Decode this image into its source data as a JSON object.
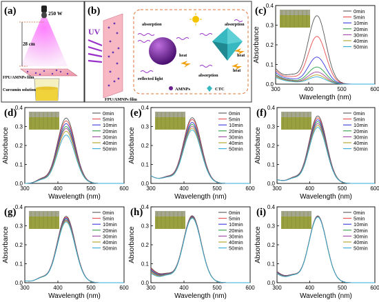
{
  "panel_a": {
    "label": "(a)",
    "lamp": "250 W",
    "distance": "28 cm",
    "film": "FPU/AMNPs film",
    "solution": "Curcumin solution"
  },
  "panel_b": {
    "label": "(b)",
    "uv": "UV",
    "film": "FPU/AMNPs film",
    "absorption": "absorption",
    "heat": "heat",
    "reflected": "reflected light",
    "amnps": "AMNPs",
    "ctc": "CTC"
  },
  "colors": {
    "series": [
      "#555555",
      "#e84a4a",
      "#3535dd",
      "#2aa044",
      "#a040a0",
      "#b0a020",
      "#30a8d8"
    ],
    "photo_bg": "#9aa040",
    "uv_beam": "#dd66dd",
    "film_pink": "#f2a8b8",
    "sphere": "#6a2090",
    "crystal": "#30a8b0",
    "dashed_frame": "#e07030"
  },
  "chart_data": [
    {
      "type": "line",
      "label": "(c)",
      "xlabel": "Wavelength (nm)",
      "ylabel": "Absorbance",
      "xlim": [
        300,
        600
      ],
      "ylim": [
        0,
        0.4
      ],
      "xticks": [
        300,
        400,
        500,
        600
      ],
      "yticks": [
        0.0,
        0.1,
        0.2,
        0.3,
        0.4
      ],
      "legend_position": "top-right",
      "series": [
        {
          "name": "0min",
          "peak": 0.345,
          "base": 0.08
        },
        {
          "name": "5min",
          "peak": 0.24,
          "base": 0.07
        },
        {
          "name": "10min",
          "peak": 0.135,
          "base": 0.06
        },
        {
          "name": "20min",
          "peak": 0.085,
          "base": 0.05
        },
        {
          "name": "30min",
          "peak": 0.06,
          "base": 0.045
        },
        {
          "name": "40min",
          "peak": 0.045,
          "base": 0.04
        },
        {
          "name": "50min",
          "peak": 0.035,
          "base": 0.035
        }
      ]
    },
    {
      "type": "line",
      "label": "(d)",
      "xlabel": "Wavelength (nm)",
      "ylabel": "Absorbance",
      "xlim": [
        300,
        600
      ],
      "ylim": [
        0,
        0.4
      ],
      "xticks": [
        300,
        400,
        500,
        600
      ],
      "yticks": [
        0.0,
        0.1,
        0.2,
        0.3,
        0.4
      ],
      "legend_position": "top-right",
      "series": [
        {
          "name": "0min",
          "peak": 0.345,
          "base": 0.0
        },
        {
          "name": "5min",
          "peak": 0.33,
          "base": 0.0
        },
        {
          "name": "10min",
          "peak": 0.315,
          "base": 0.0
        },
        {
          "name": "20min",
          "peak": 0.3,
          "base": 0.0
        },
        {
          "name": "30min",
          "peak": 0.29,
          "base": 0.0
        },
        {
          "name": "40min",
          "peak": 0.275,
          "base": 0.0
        },
        {
          "name": "50min",
          "peak": 0.255,
          "base": 0.0
        }
      ]
    },
    {
      "type": "line",
      "label": "(e)",
      "xlabel": "Wavelength (nm)",
      "ylabel": "Absorbance",
      "xlim": [
        300,
        600
      ],
      "ylim": [
        0,
        0.4
      ],
      "xticks": [
        300,
        400,
        500,
        600
      ],
      "yticks": [
        0.0,
        0.1,
        0.2,
        0.3,
        0.4
      ],
      "legend_position": "top-right",
      "series": [
        {
          "name": "0min",
          "peak": 0.345,
          "base": 0.04
        },
        {
          "name": "5min",
          "peak": 0.335,
          "base": 0.04
        },
        {
          "name": "10min",
          "peak": 0.32,
          "base": 0.04
        },
        {
          "name": "20min",
          "peak": 0.31,
          "base": 0.04
        },
        {
          "name": "30min",
          "peak": 0.3,
          "base": 0.04
        },
        {
          "name": "40min",
          "peak": 0.29,
          "base": 0.04
        },
        {
          "name": "50min",
          "peak": 0.28,
          "base": 0.04
        }
      ]
    },
    {
      "type": "line",
      "label": "(f)",
      "xlabel": "Wavelength (nm)",
      "ylabel": "Absorbance",
      "xlim": [
        300,
        600
      ],
      "ylim": [
        0,
        0.4
      ],
      "xticks": [
        300,
        400,
        500,
        600
      ],
      "yticks": [
        0.0,
        0.1,
        0.2,
        0.3,
        0.4
      ],
      "legend_position": "top-right",
      "series": [
        {
          "name": "0min",
          "peak": 0.355,
          "base": 0.02
        },
        {
          "name": "5min",
          "peak": 0.345,
          "base": 0.02
        },
        {
          "name": "10min",
          "peak": 0.335,
          "base": 0.02
        },
        {
          "name": "20min",
          "peak": 0.325,
          "base": 0.02
        },
        {
          "name": "30min",
          "peak": 0.315,
          "base": 0.02
        },
        {
          "name": "40min",
          "peak": 0.305,
          "base": 0.02
        },
        {
          "name": "50min",
          "peak": 0.295,
          "base": 0.02
        }
      ]
    },
    {
      "type": "line",
      "label": "(g)",
      "xlabel": "Wavelength (nm)",
      "ylabel": "Absorbance",
      "xlim": [
        300,
        600
      ],
      "ylim": [
        0,
        0.4
      ],
      "xticks": [
        300,
        400,
        500,
        600
      ],
      "yticks": [
        0.0,
        0.1,
        0.2,
        0.3,
        0.4
      ],
      "legend_position": "top-right",
      "series": [
        {
          "name": "0min",
          "peak": 0.35,
          "base": 0.01
        },
        {
          "name": "5min",
          "peak": 0.345,
          "base": 0.01
        },
        {
          "name": "10min",
          "peak": 0.34,
          "base": 0.01
        },
        {
          "name": "20min",
          "peak": 0.335,
          "base": 0.01
        },
        {
          "name": "30min",
          "peak": 0.33,
          "base": 0.01
        },
        {
          "name": "40min",
          "peak": 0.325,
          "base": 0.01
        },
        {
          "name": "50min",
          "peak": 0.32,
          "base": 0.01
        }
      ]
    },
    {
      "type": "line",
      "label": "(h)",
      "xlabel": "Wavelength (nm)",
      "ylabel": "Absorbance",
      "xlim": [
        300,
        600
      ],
      "ylim": [
        0,
        0.4
      ],
      "xticks": [
        300,
        400,
        500,
        600
      ],
      "yticks": [
        0.0,
        0.1,
        0.2,
        0.3,
        0.4
      ],
      "legend_position": "top-right",
      "series": [
        {
          "name": "0min",
          "peak": 0.35,
          "base": 0.08
        },
        {
          "name": "5min",
          "peak": 0.348,
          "base": 0.075
        },
        {
          "name": "10min",
          "peak": 0.346,
          "base": 0.07
        },
        {
          "name": "20min",
          "peak": 0.344,
          "base": 0.065
        },
        {
          "name": "30min",
          "peak": 0.342,
          "base": 0.06
        },
        {
          "name": "40min",
          "peak": 0.34,
          "base": 0.055
        },
        {
          "name": "50min",
          "peak": 0.338,
          "base": 0.05
        }
      ]
    },
    {
      "type": "line",
      "label": "(i)",
      "xlabel": "Wavelength (nm)",
      "ylabel": "Absorbance",
      "xlim": [
        300,
        600
      ],
      "ylim": [
        0,
        0.4
      ],
      "xticks": [
        300,
        400,
        500,
        600
      ],
      "yticks": [
        0.0,
        0.1,
        0.2,
        0.3,
        0.4
      ],
      "legend_position": "top-right",
      "series": [
        {
          "name": "0min",
          "peak": 0.35,
          "base": 0.06
        },
        {
          "name": "5min",
          "peak": 0.349,
          "base": 0.058
        },
        {
          "name": "10min",
          "peak": 0.348,
          "base": 0.056
        },
        {
          "name": "20min",
          "peak": 0.347,
          "base": 0.054
        },
        {
          "name": "30min",
          "peak": 0.346,
          "base": 0.052
        },
        {
          "name": "40min",
          "peak": 0.345,
          "base": 0.05
        },
        {
          "name": "50min",
          "peak": 0.344,
          "base": 0.048
        }
      ]
    }
  ]
}
